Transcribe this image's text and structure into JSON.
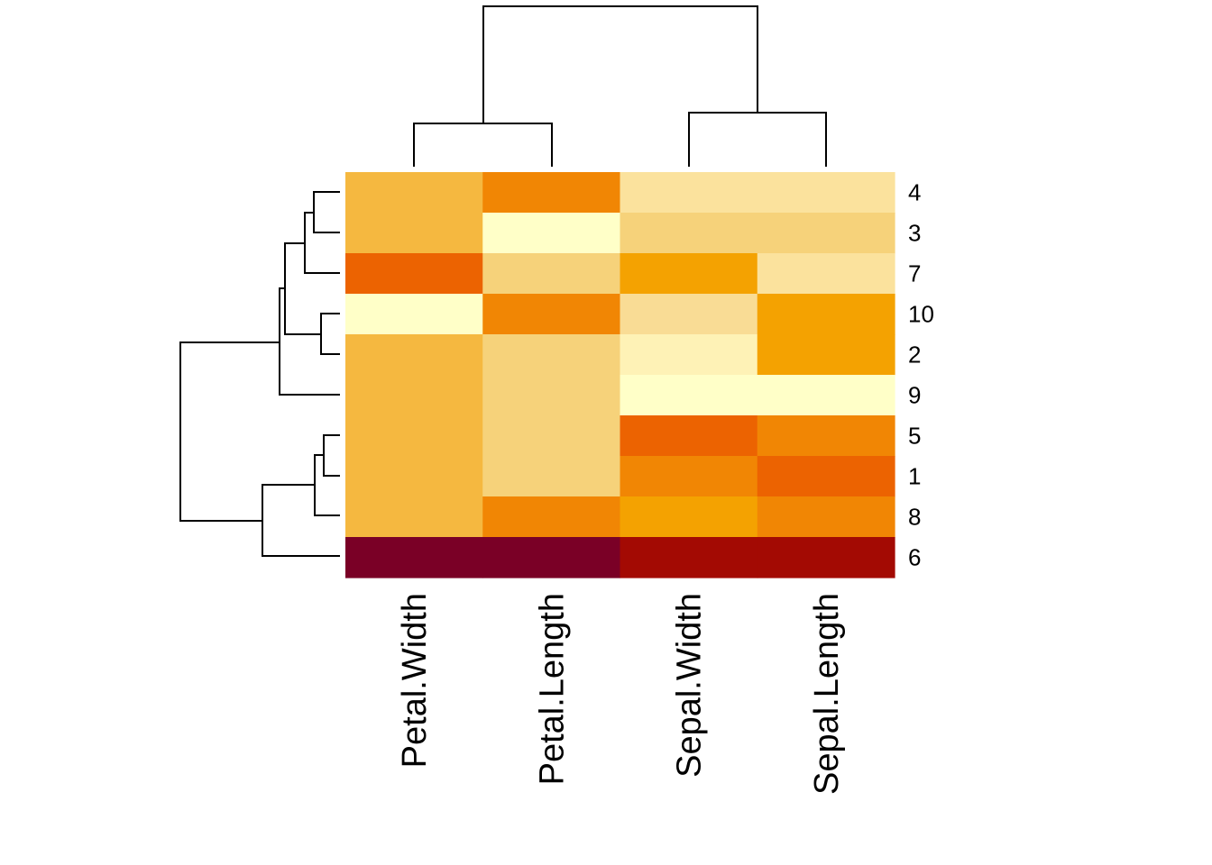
{
  "chart_data": {
    "type": "heatmap",
    "columns": [
      "Petal.Width",
      "Petal.Length",
      "Sepal.Width",
      "Sepal.Length"
    ],
    "rows": [
      "4",
      "3",
      "7",
      "10",
      "2",
      "9",
      "5",
      "1",
      "8",
      "6"
    ],
    "colors": [
      [
        "#F5B840",
        "#F18604",
        "#FBE29D",
        "#FBE29D"
      ],
      [
        "#F5B840",
        "#FFFFC8",
        "#F6D27A",
        "#F6D27A"
      ],
      [
        "#EC6301",
        "#F6D27A",
        "#F4A201",
        "#FBE29D"
      ],
      [
        "#FFFFC8",
        "#F18604",
        "#F9DC95",
        "#F4A201"
      ],
      [
        "#F5B840",
        "#F6D27A",
        "#FEF2B6",
        "#F4A201"
      ],
      [
        "#F5B840",
        "#F6D27A",
        "#FFFFC8",
        "#FFFFC8"
      ],
      [
        "#F5B840",
        "#F6D27A",
        "#EC6301",
        "#F18604"
      ],
      [
        "#F5B840",
        "#F6D27A",
        "#F18604",
        "#EC6301"
      ],
      [
        "#F5B840",
        "#F18604",
        "#F4A201",
        "#F18604"
      ],
      [
        "#7A0026",
        "#7A0026",
        "#A30A03",
        "#A30A03"
      ]
    ],
    "color_scale": "heat (dark red = low, pale yellow = high)",
    "row_dendrogram": "present",
    "column_dendrogram": "present",
    "legend": "none"
  }
}
